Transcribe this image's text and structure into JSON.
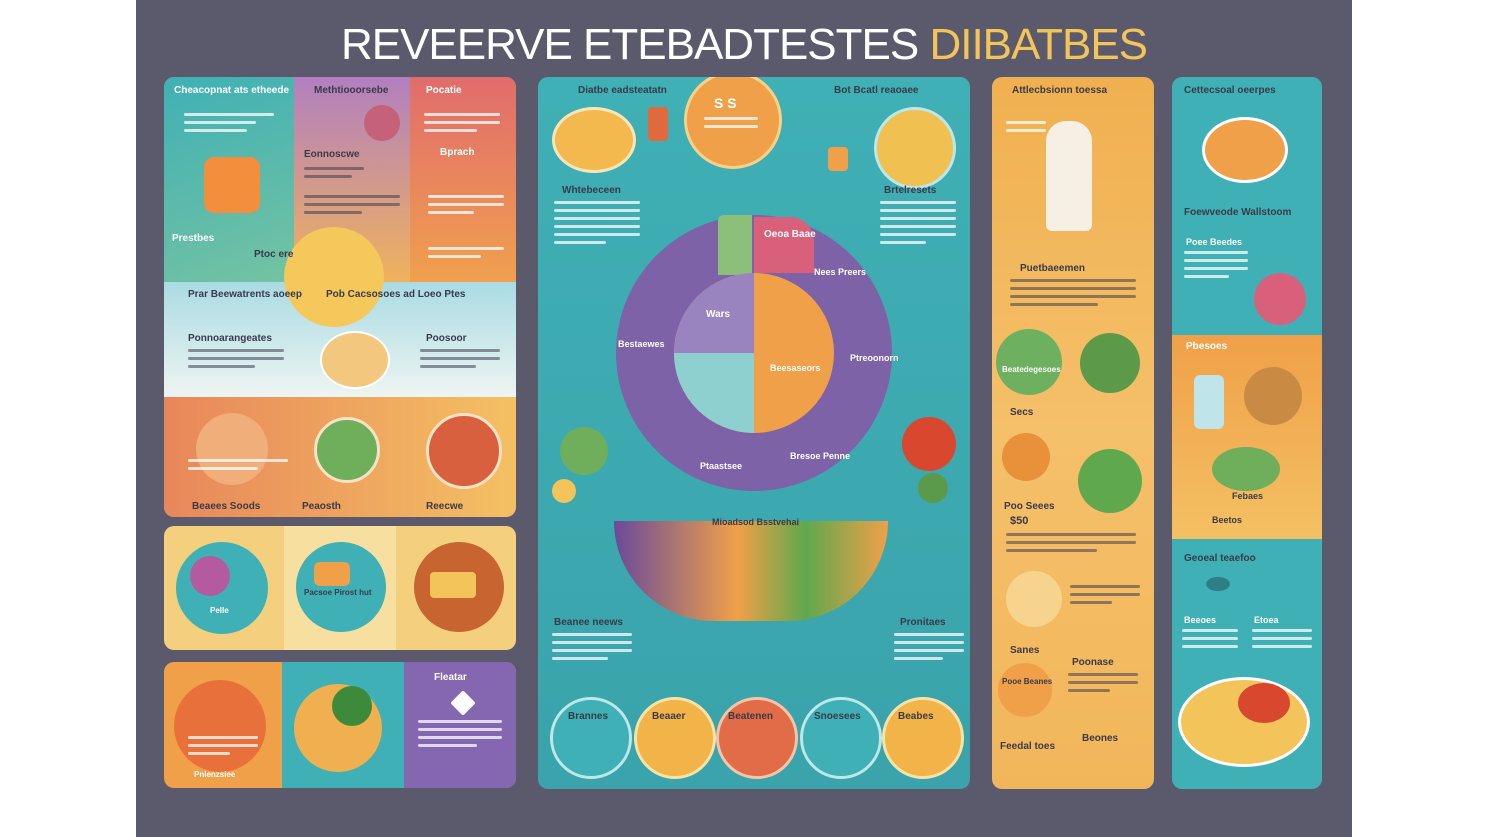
{
  "title": {
    "part1": "REVEERVE ETEBADTESTES",
    "part2": "DIIBATBES"
  },
  "colors": {
    "background": "#5a5a6c",
    "teal": "#3fb0b5",
    "orange": "#f0a048",
    "purple": "#7d62a8",
    "yellow": "#f2c45a",
    "coral": "#e0705a"
  },
  "left_panel": {
    "headers": [
      "Cheacopnat ats etheede",
      "Methtiooorsebe",
      "Pocatie"
    ],
    "labels": [
      "Prestbes",
      "Eonnoscwe",
      "Bprach",
      "Ptoc ere",
      "Prar Beewatrents aoeep",
      "Pob Cacsosoes ad Loeo Ptes",
      "Ponnoarangeates",
      "Poosoor",
      "Beaees Soods",
      "Peaosth",
      "Reecwe"
    ]
  },
  "circles_panel": {
    "labels": [
      "Pelle",
      "Pacsoe Pirost hut"
    ]
  },
  "bottom_left_panel": {
    "labels": [
      "Fleatar",
      "Pnlenzsiee"
    ]
  },
  "center_panel": {
    "headers": [
      "Diatbe eadsteatatn",
      "Bot Bcatl reaoaee"
    ],
    "badge": "S S",
    "labels": [
      "Whtebeceen",
      "Brtelresets",
      "Oeoa Baae",
      "Nees Preers",
      "Wars",
      "Beesaseors",
      "Bestaewes",
      "Ptreoonorn",
      "Ptaastsee",
      "Bresoe Penne",
      "Mioadsod Bsstvehai",
      "Beanee neews",
      "Pronitaes"
    ],
    "bottom_circles": [
      "Brannes",
      "Beaaer",
      "Beatenen",
      "Snoesees",
      "Beabes"
    ]
  },
  "right_column": {
    "header": "Attlecbsionn toessa",
    "labels": [
      "Puetbaeemen",
      "Beatedegesoes",
      "Secs",
      "Poo Seees",
      "$50",
      "Sanes",
      "Pooe Beanes",
      "Poonase",
      "Feedal toes",
      "Beones"
    ]
  },
  "far_right_column": {
    "headers": [
      "Cettecsoal oeerpes",
      "Foewveode Wallstoom",
      "Geoeal teaefoo"
    ],
    "labels": [
      "Poee Beedes",
      "Pbesoes",
      "Febaes",
      "Beetos",
      "Beeoes",
      "Etoea"
    ]
  }
}
